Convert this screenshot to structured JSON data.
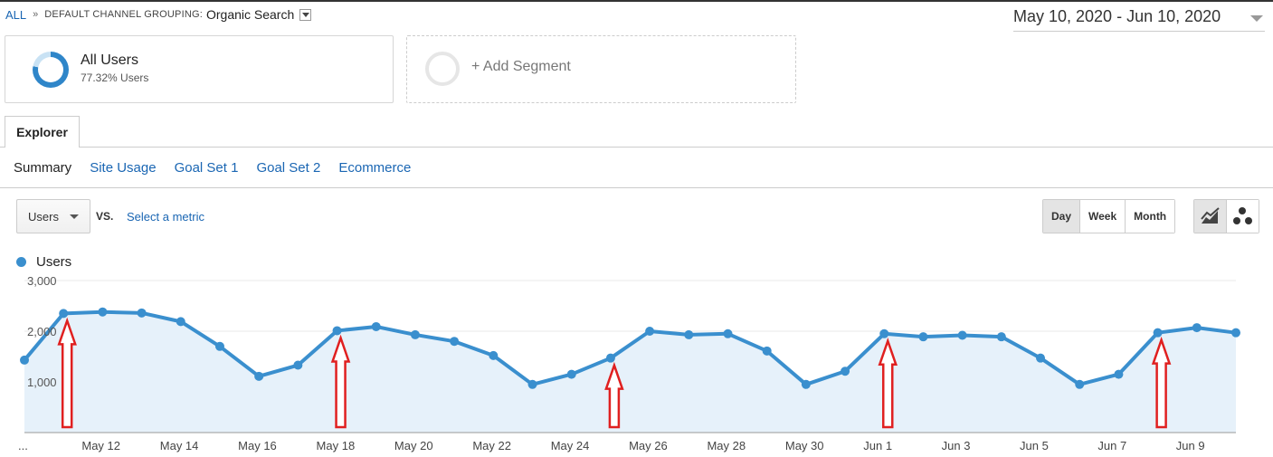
{
  "breadcrumb": {
    "root": "ALL",
    "separator": "»",
    "grouping_label": "DEFAULT CHANNEL GROUPING:",
    "grouping_value": "Organic Search"
  },
  "date_range": "May 10, 2020 - Jun 10, 2020",
  "segments": {
    "active": {
      "name": "All Users",
      "share": "77.32% Users",
      "share_fraction": 0.7732
    },
    "add_label": "+ Add Segment"
  },
  "tabs": {
    "explorer": "Explorer"
  },
  "subtabs": [
    "Summary",
    "Site Usage",
    "Goal Set 1",
    "Goal Set 2",
    "Ecommerce"
  ],
  "metric_selector": {
    "value": "Users",
    "vs": "VS.",
    "select_metric": "Select a metric"
  },
  "granularity": [
    "Day",
    "Week",
    "Month"
  ],
  "chart_type_icons": [
    "line-chart-icon",
    "motion-chart-icon"
  ],
  "colors": {
    "series": "#3a8fce",
    "fill": "#e6f1fa",
    "arrow": "#e02020",
    "link": "#1a66b3"
  },
  "chart_data": {
    "type": "area",
    "title": "",
    "series": [
      {
        "name": "Users",
        "values": [
          1430,
          2350,
          2380,
          2360,
          2190,
          1700,
          1110,
          1330,
          2010,
          2090,
          1930,
          1800,
          1520,
          950,
          1150,
          1470,
          2000,
          1930,
          1950,
          1610,
          950,
          1210,
          1950,
          1890,
          1920,
          1890,
          1470,
          950,
          1150,
          1970,
          2070,
          1970
        ]
      }
    ],
    "x_tick_labels": [
      "...",
      "May 12",
      "May 14",
      "May 16",
      "May 18",
      "May 20",
      "May 22",
      "May 24",
      "May 26",
      "May 28",
      "May 30",
      "Jun 1",
      "Jun 3",
      "Jun 5",
      "Jun 7",
      "Jun 9"
    ],
    "y_tick_labels": [
      "1,000",
      "2,000",
      "3,000"
    ],
    "y_ticks": [
      1000,
      2000,
      3000
    ],
    "ylim": [
      0,
      3000
    ],
    "grid": true,
    "legend_position": "top-left",
    "annotations": {
      "arrow_points": [
        1,
        8,
        15,
        22,
        29
      ]
    }
  }
}
